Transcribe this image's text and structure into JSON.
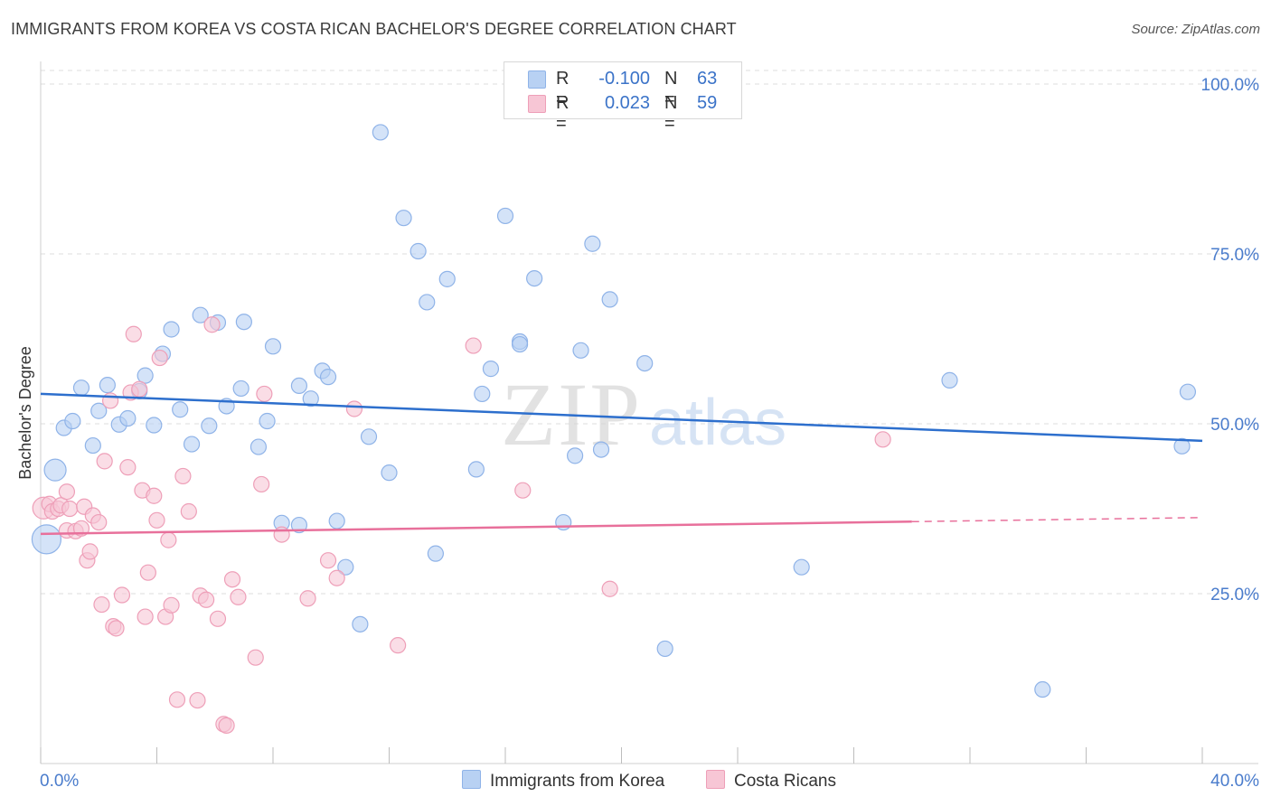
{
  "title": "IMMIGRANTS FROM KOREA VS COSTA RICAN BACHELOR'S DEGREE CORRELATION CHART",
  "source": "Source: ZipAtlas.com",
  "watermark": {
    "zip": "ZIP",
    "atlas": "atlas"
  },
  "legend": {
    "rows": [
      {
        "r_label": "R =",
        "r_value": "-0.100",
        "n_label": "N =",
        "n_value": "63"
      },
      {
        "r_label": "R =",
        "r_value": "0.023",
        "n_label": "N =",
        "n_value": "59"
      }
    ]
  },
  "bottom_legend": {
    "korea": "Immigrants from Korea",
    "costa": "Costa Ricans"
  },
  "colors": {
    "korea_fill": "#b8d1f3",
    "korea_stroke": "#8fb3e8",
    "korea_line": "#2d6fcd",
    "costa_fill": "#f7c6d5",
    "costa_stroke": "#ee9fb8",
    "costa_line": "#e8709b",
    "grid": "#dcdcdc",
    "tick_label": "#4a7ccc"
  },
  "chart_data": {
    "type": "scatter",
    "title": "IMMIGRANTS FROM KOREA VS COSTA RICAN BACHELOR'S DEGREE CORRELATION CHART",
    "xlabel": "",
    "ylabel": "Bachelor's Degree",
    "xlim": [
      0,
      40
    ],
    "ylim": [
      0,
      102
    ],
    "x_tick_labels": [
      "0.0%",
      "40.0%"
    ],
    "y_ticks": [
      25,
      50,
      75,
      100
    ],
    "y_tick_labels": [
      "25.0%",
      "50.0%",
      "75.0%",
      "100.0%"
    ],
    "grid": true,
    "legend_position": "bottom",
    "series": [
      {
        "name": "Immigrants from Korea",
        "r": -0.1,
        "n": 63,
        "trend": {
          "x": [
            0,
            40
          ],
          "y": [
            54.4,
            47.5
          ],
          "dashed_from": null
        },
        "points": [
          {
            "x": 0.2,
            "y": 33,
            "s": 16
          },
          {
            "x": 0.5,
            "y": 43.2,
            "s": 12
          },
          {
            "x": 0.8,
            "y": 49.4
          },
          {
            "x": 1.1,
            "y": 50.4
          },
          {
            "x": 1.4,
            "y": 55.3
          },
          {
            "x": 1.8,
            "y": 46.8
          },
          {
            "x": 2.0,
            "y": 51.9
          },
          {
            "x": 2.3,
            "y": 55.7
          },
          {
            "x": 2.7,
            "y": 49.9
          },
          {
            "x": 3.0,
            "y": 50.8
          },
          {
            "x": 3.4,
            "y": 54.8
          },
          {
            "x": 3.6,
            "y": 57.1
          },
          {
            "x": 3.9,
            "y": 49.8
          },
          {
            "x": 4.2,
            "y": 60.3
          },
          {
            "x": 4.5,
            "y": 63.9
          },
          {
            "x": 4.8,
            "y": 52.1
          },
          {
            "x": 5.2,
            "y": 47
          },
          {
            "x": 5.5,
            "y": 66
          },
          {
            "x": 5.8,
            "y": 49.7
          },
          {
            "x": 6.1,
            "y": 64.9
          },
          {
            "x": 6.4,
            "y": 52.6
          },
          {
            "x": 6.9,
            "y": 55.2
          },
          {
            "x": 7.0,
            "y": 65
          },
          {
            "x": 7.5,
            "y": 46.6
          },
          {
            "x": 7.8,
            "y": 50.4
          },
          {
            "x": 8.0,
            "y": 61.4
          },
          {
            "x": 8.3,
            "y": 35.4
          },
          {
            "x": 8.9,
            "y": 55.6
          },
          {
            "x": 8.9,
            "y": 35.1
          },
          {
            "x": 9.3,
            "y": 53.7
          },
          {
            "x": 9.7,
            "y": 57.8
          },
          {
            "x": 9.9,
            "y": 56.9
          },
          {
            "x": 10.2,
            "y": 35.7
          },
          {
            "x": 10.5,
            "y": 28.9
          },
          {
            "x": 11.0,
            "y": 20.5
          },
          {
            "x": 11.3,
            "y": 48.1
          },
          {
            "x": 11.7,
            "y": 92.9
          },
          {
            "x": 12.0,
            "y": 42.8
          },
          {
            "x": 12.5,
            "y": 80.3
          },
          {
            "x": 13.0,
            "y": 75.4
          },
          {
            "x": 13.3,
            "y": 67.9
          },
          {
            "x": 13.6,
            "y": 30.9
          },
          {
            "x": 14.0,
            "y": 71.3
          },
          {
            "x": 15.0,
            "y": 43.3
          },
          {
            "x": 15.2,
            "y": 54.4
          },
          {
            "x": 15.5,
            "y": 58.1
          },
          {
            "x": 16.0,
            "y": 80.6
          },
          {
            "x": 16.5,
            "y": 62.1
          },
          {
            "x": 16.5,
            "y": 61.7
          },
          {
            "x": 17.0,
            "y": 71.4
          },
          {
            "x": 18.0,
            "y": 35.5
          },
          {
            "x": 18.4,
            "y": 45.3
          },
          {
            "x": 18.6,
            "y": 60.8
          },
          {
            "x": 19.0,
            "y": 76.5
          },
          {
            "x": 19.3,
            "y": 46.2
          },
          {
            "x": 19.6,
            "y": 68.3
          },
          {
            "x": 20.8,
            "y": 58.9
          },
          {
            "x": 21.5,
            "y": 16.9
          },
          {
            "x": 26.2,
            "y": 28.9
          },
          {
            "x": 31.3,
            "y": 56.4
          },
          {
            "x": 34.5,
            "y": 10.9
          },
          {
            "x": 39.3,
            "y": 46.7
          },
          {
            "x": 39.5,
            "y": 54.7
          }
        ]
      },
      {
        "name": "Costa Ricans",
        "r": 0.023,
        "n": 59,
        "trend": {
          "x": [
            0,
            40
          ],
          "y": [
            33.8,
            36.2
          ],
          "dashed_from": 30
        },
        "points": [
          {
            "x": 0.1,
            "y": 37.6,
            "s": 12
          },
          {
            "x": 0.3,
            "y": 38.2
          },
          {
            "x": 0.4,
            "y": 37.1
          },
          {
            "x": 0.6,
            "y": 37.5
          },
          {
            "x": 0.7,
            "y": 38
          },
          {
            "x": 0.9,
            "y": 40
          },
          {
            "x": 0.9,
            "y": 34.3
          },
          {
            "x": 1.0,
            "y": 37.5
          },
          {
            "x": 1.2,
            "y": 34.2
          },
          {
            "x": 1.4,
            "y": 34.6
          },
          {
            "x": 1.5,
            "y": 37.8
          },
          {
            "x": 1.6,
            "y": 29.9
          },
          {
            "x": 1.7,
            "y": 31.2
          },
          {
            "x": 1.8,
            "y": 36.5
          },
          {
            "x": 2.0,
            "y": 35.5
          },
          {
            "x": 2.1,
            "y": 23.4
          },
          {
            "x": 2.2,
            "y": 44.5
          },
          {
            "x": 2.4,
            "y": 53.4
          },
          {
            "x": 2.5,
            "y": 20.2
          },
          {
            "x": 2.6,
            "y": 19.9
          },
          {
            "x": 2.8,
            "y": 24.8
          },
          {
            "x": 3.0,
            "y": 43.6
          },
          {
            "x": 3.1,
            "y": 54.6
          },
          {
            "x": 3.2,
            "y": 63.2
          },
          {
            "x": 3.4,
            "y": 55.1
          },
          {
            "x": 3.5,
            "y": 40.2
          },
          {
            "x": 3.6,
            "y": 21.6
          },
          {
            "x": 3.7,
            "y": 28.1
          },
          {
            "x": 3.9,
            "y": 39.4
          },
          {
            "x": 4.0,
            "y": 35.8
          },
          {
            "x": 4.1,
            "y": 59.7
          },
          {
            "x": 4.3,
            "y": 21.6
          },
          {
            "x": 4.4,
            "y": 32.9
          },
          {
            "x": 4.5,
            "y": 23.3
          },
          {
            "x": 4.7,
            "y": 9.4
          },
          {
            "x": 4.9,
            "y": 42.3
          },
          {
            "x": 5.1,
            "y": 37.1
          },
          {
            "x": 5.4,
            "y": 9.3
          },
          {
            "x": 5.5,
            "y": 24.7
          },
          {
            "x": 5.7,
            "y": 24.1
          },
          {
            "x": 5.9,
            "y": 64.6
          },
          {
            "x": 6.1,
            "y": 21.3
          },
          {
            "x": 6.3,
            "y": 5.8
          },
          {
            "x": 6.4,
            "y": 5.6
          },
          {
            "x": 6.6,
            "y": 27.1
          },
          {
            "x": 6.8,
            "y": 24.5
          },
          {
            "x": 7.4,
            "y": 15.6
          },
          {
            "x": 7.6,
            "y": 41.1
          },
          {
            "x": 7.7,
            "y": 54.4
          },
          {
            "x": 8.3,
            "y": 33.7
          },
          {
            "x": 9.2,
            "y": 24.3
          },
          {
            "x": 9.9,
            "y": 29.9
          },
          {
            "x": 10.2,
            "y": 27.3
          },
          {
            "x": 10.8,
            "y": 52.2
          },
          {
            "x": 12.3,
            "y": 17.4
          },
          {
            "x": 14.9,
            "y": 61.5
          },
          {
            "x": 16.6,
            "y": 40.2
          },
          {
            "x": 19.6,
            "y": 25.7
          },
          {
            "x": 29.0,
            "y": 47.7
          }
        ]
      }
    ]
  }
}
